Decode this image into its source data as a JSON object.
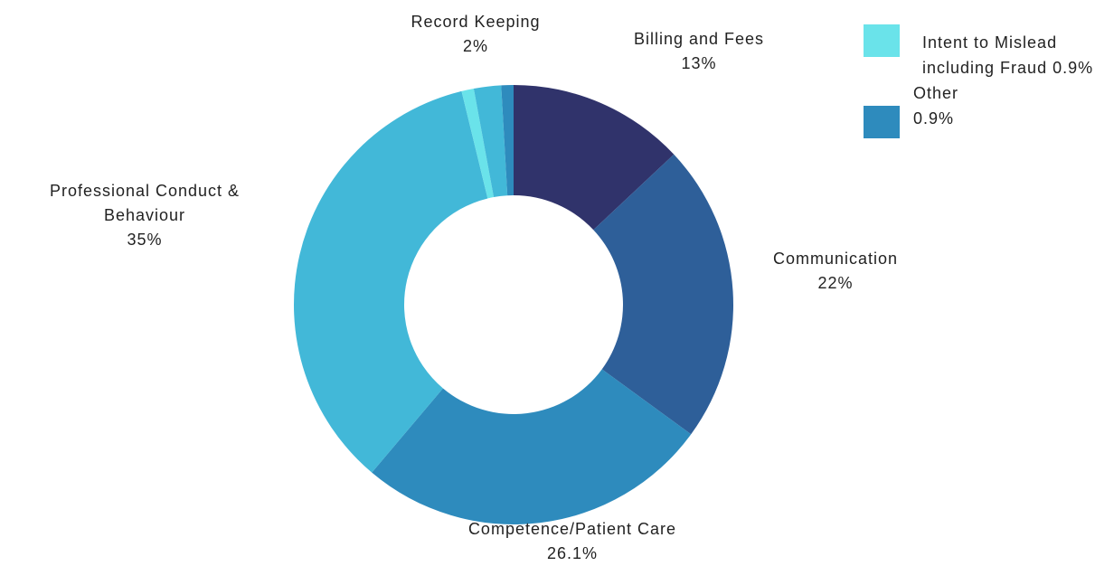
{
  "chart_data": {
    "type": "donut",
    "categories": [
      "Billing and Fees",
      "Communication",
      "Competence/Patient Care",
      "Professional Conduct & Behaviour",
      "Intent to Mislead including Fraud",
      "Record Keeping",
      "Other"
    ],
    "values": [
      13,
      22,
      26.1,
      35,
      0.9,
      2,
      0.9
    ],
    "value_labels": [
      "13%",
      "22%",
      "26.1%",
      "35%",
      "0.9%",
      "2%",
      "0.9%"
    ],
    "colors": [
      "#30336b",
      "#2e5f99",
      "#2e8bbd",
      "#42b8d8",
      "#6ae3ea",
      "#42b8d8",
      "#2e8bbd"
    ]
  }
}
